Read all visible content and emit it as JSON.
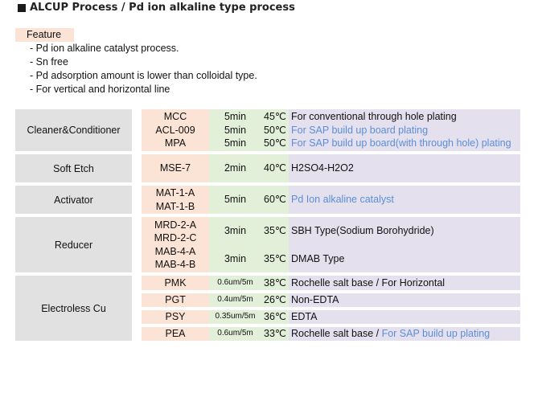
{
  "title": "ALCUP Process / Pd ion alkaline type process",
  "feature": {
    "label": "Feature",
    "items": [
      "- Pd ion alkaline catalyst process.",
      "- Sn free",
      "- Pd adsorption amount is lower than colloidal type.",
      "- For vertical and horizontal line"
    ]
  },
  "sections": {
    "cleaner": {
      "label": "Cleaner&Conditioner",
      "codes": [
        "MCC",
        "ACL-009",
        "MPA"
      ],
      "times": [
        "5min",
        "5min",
        "5min"
      ],
      "temps": [
        "45℃",
        "50℃",
        "50℃"
      ],
      "descs": [
        "For conventional through hole plating",
        "For SAP build up board plating",
        "For SAP build up board(with through hole) plating"
      ]
    },
    "softetch": {
      "label": "Soft Etch",
      "code": "MSE-7",
      "time": "2min",
      "temp": "40℃",
      "desc": "H2SO4-H2O2"
    },
    "activator": {
      "label": "Activator",
      "codes": [
        "MAT-1-A",
        "MAT-1-B"
      ],
      "time": "5min",
      "temp": "60℃",
      "desc": "Pd Ion alkaline catalyst"
    },
    "reducer": {
      "label": "Reducer",
      "rows": [
        {
          "codes": [
            "MRD-2-A",
            "MRD-2-C"
          ],
          "time": "3min",
          "temp": "35℃",
          "desc": "SBH Type(Sodium Borohydride)"
        },
        {
          "codes": [
            "MAB-4-A",
            "MAB-4-B"
          ],
          "time": "3min",
          "temp": "35℃",
          "desc": "DMAB Type"
        }
      ]
    },
    "electroless": {
      "label": "Electroless Cu",
      "rows": [
        {
          "code": "PMK",
          "time": "0.6um/5m",
          "temp": "38℃",
          "desc": "Rochelle salt base / For Horizontal"
        },
        {
          "code": "PGT",
          "time": "0.4um/5m",
          "temp": "26℃",
          "desc": "Non-EDTA"
        },
        {
          "code": "PSY",
          "time": "0.35um/5m",
          "temp": "36℃",
          "desc": "EDTA"
        },
        {
          "code": "PEA",
          "time": "0.6um/5m",
          "temp": "33℃",
          "desc_a": "Rochelle salt base / ",
          "desc_b": "For SAP build up plating"
        }
      ]
    }
  },
  "colors": {
    "category_bg": "#e1e1e1",
    "code_bg": "#fbe4d5",
    "condition_bg": "#e2efd9",
    "description_bg": "#e4e0ee",
    "highlight_text": "#5b8ed6"
  }
}
